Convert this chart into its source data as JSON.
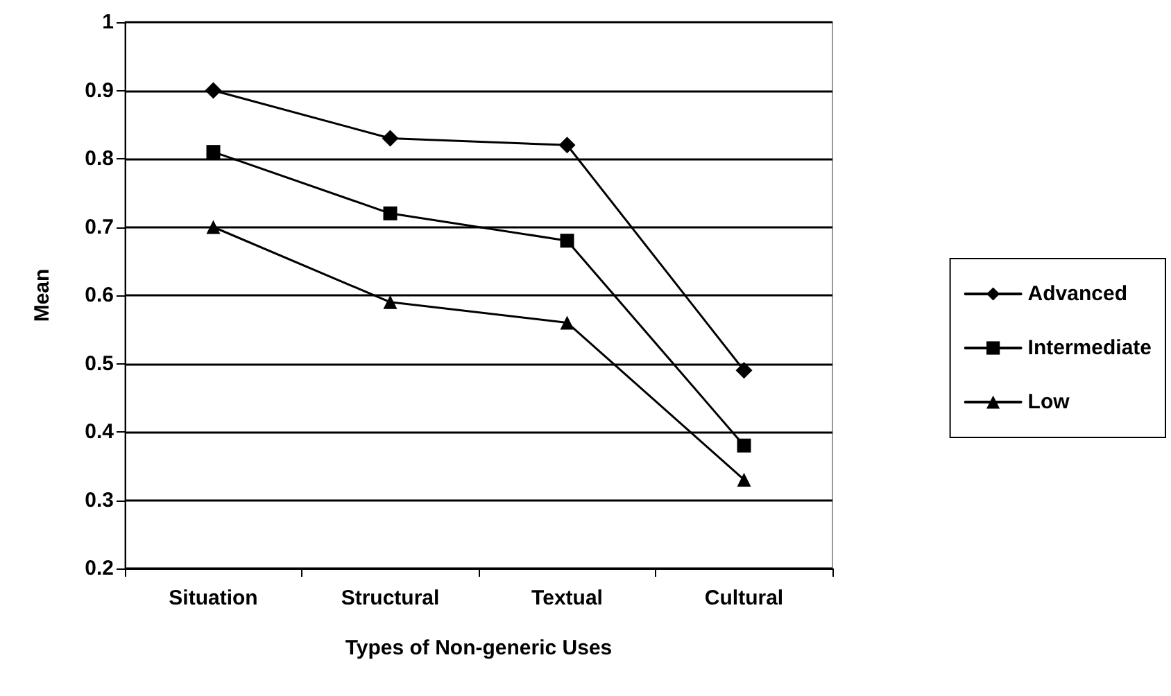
{
  "chart_data": {
    "type": "line",
    "xlabel": "Types of Non-generic Uses",
    "ylabel": "Mean",
    "categories": [
      "Situation",
      "Structural",
      "Textual",
      "Cultural"
    ],
    "series": [
      {
        "name": "Advanced",
        "color": "#000000",
        "marker": "diamond",
        "values": [
          0.9,
          0.83,
          0.82,
          0.49
        ]
      },
      {
        "name": "Intermediate",
        "color": "#000000",
        "marker": "square",
        "values": [
          0.81,
          0.72,
          0.68,
          0.38
        ]
      },
      {
        "name": "Low",
        "color": "#000000",
        "marker": "triangle",
        "values": [
          0.7,
          0.59,
          0.56,
          0.33
        ]
      }
    ],
    "ylim": [
      0.2,
      1
    ],
    "yticks": [
      0.2,
      0.3,
      0.4,
      0.5,
      0.6,
      0.7,
      0.8,
      0.9,
      1
    ],
    "grid": "y",
    "legend": "right"
  }
}
